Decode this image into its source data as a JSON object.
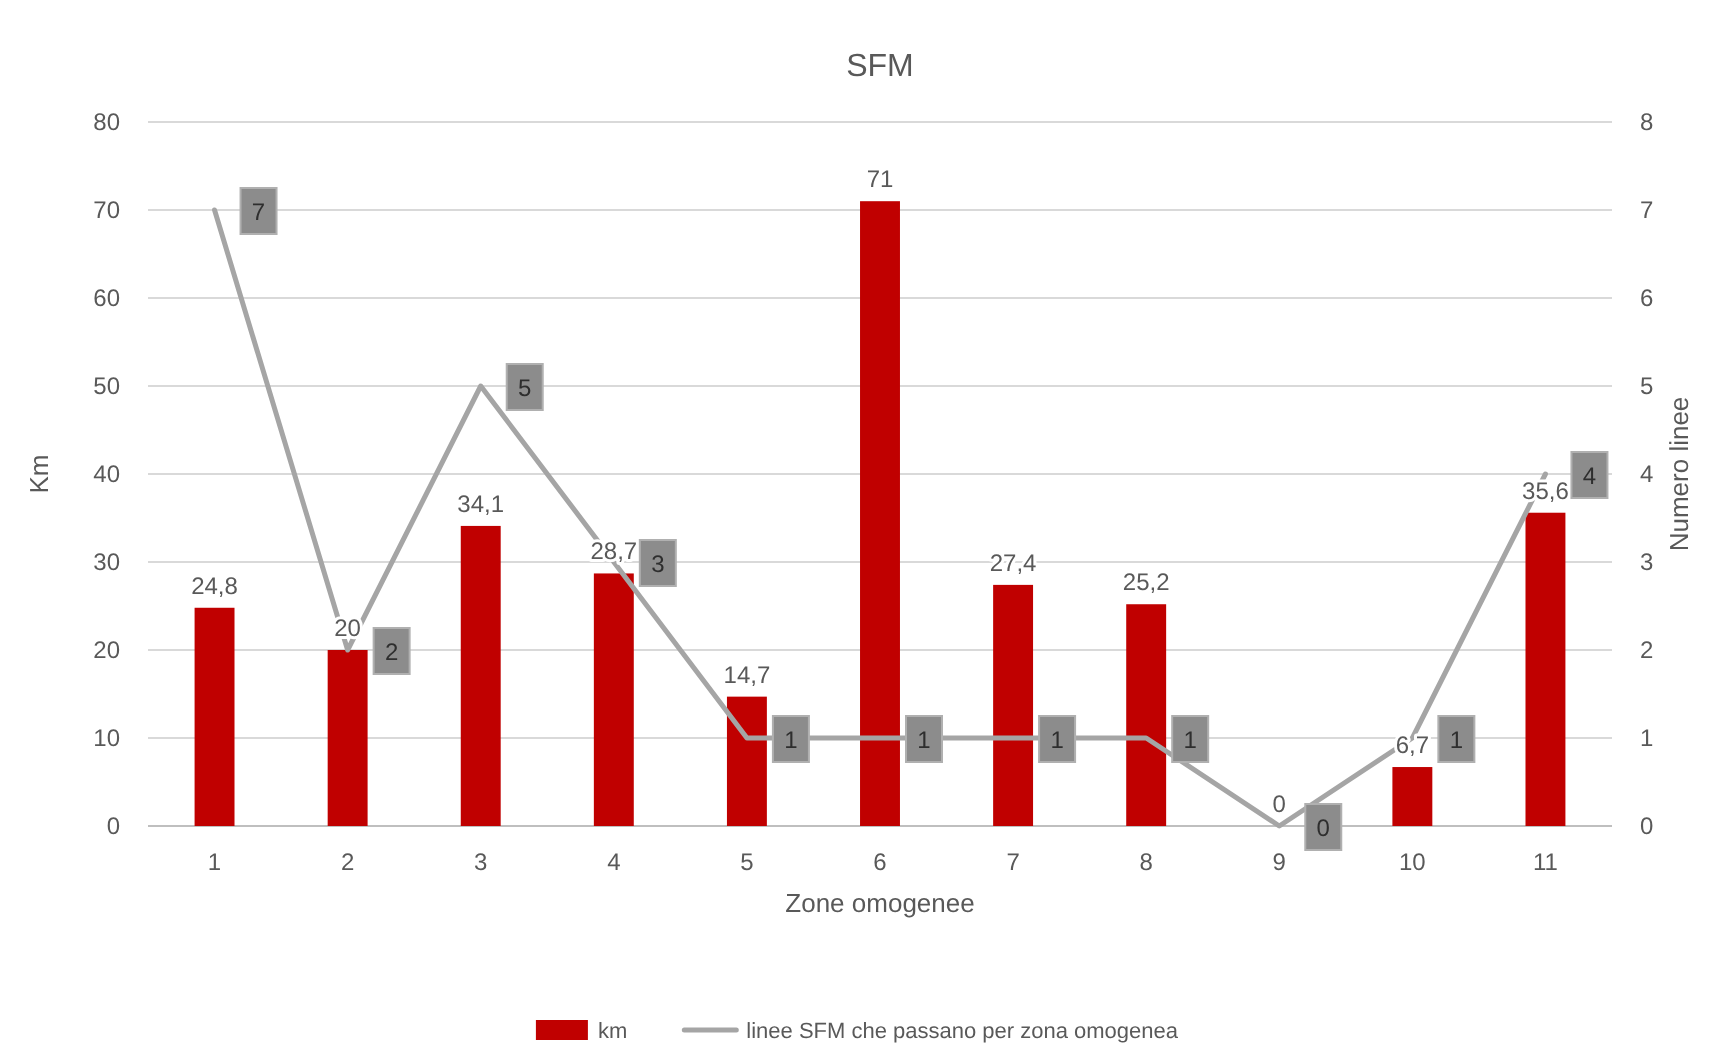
{
  "chart_data": {
    "type": "bar",
    "title": "SFM",
    "xlabel": "Zone omogenee",
    "ylabel": "Km",
    "y2label": "Numero linee",
    "categories": [
      "1",
      "2",
      "3",
      "4",
      "5",
      "6",
      "7",
      "8",
      "9",
      "10",
      "11"
    ],
    "series": [
      {
        "name": "km",
        "color": "#c00000",
        "values": [
          24.8,
          20,
          34.1,
          28.7,
          14.7,
          71,
          27.4,
          25.2,
          0,
          6.7,
          35.6
        ],
        "value_labels": [
          "24,8",
          "20",
          "34,1",
          "28,7",
          "14,7",
          "71",
          "27,4",
          "25,2",
          "0",
          "6,7",
          "35,6"
        ]
      },
      {
        "name": "linee SFM che passano per zona omogenea",
        "type": "line",
        "axis": "y2",
        "color": "#a5a5a5",
        "values": [
          7,
          2,
          5,
          3,
          1,
          1,
          1,
          1,
          0,
          1,
          4
        ],
        "value_labels": [
          "7",
          "2",
          "5",
          "3",
          "1",
          "1",
          "1",
          "1",
          "0",
          "1",
          "4"
        ]
      }
    ],
    "ylim": [
      0,
      80
    ],
    "yticks": [
      0,
      10,
      20,
      30,
      40,
      50,
      60,
      70,
      80
    ],
    "y2lim": [
      0,
      8
    ],
    "y2ticks": [
      0,
      1,
      2,
      3,
      4,
      5,
      6,
      7,
      8
    ],
    "grid": "y",
    "legend": "bottom"
  }
}
